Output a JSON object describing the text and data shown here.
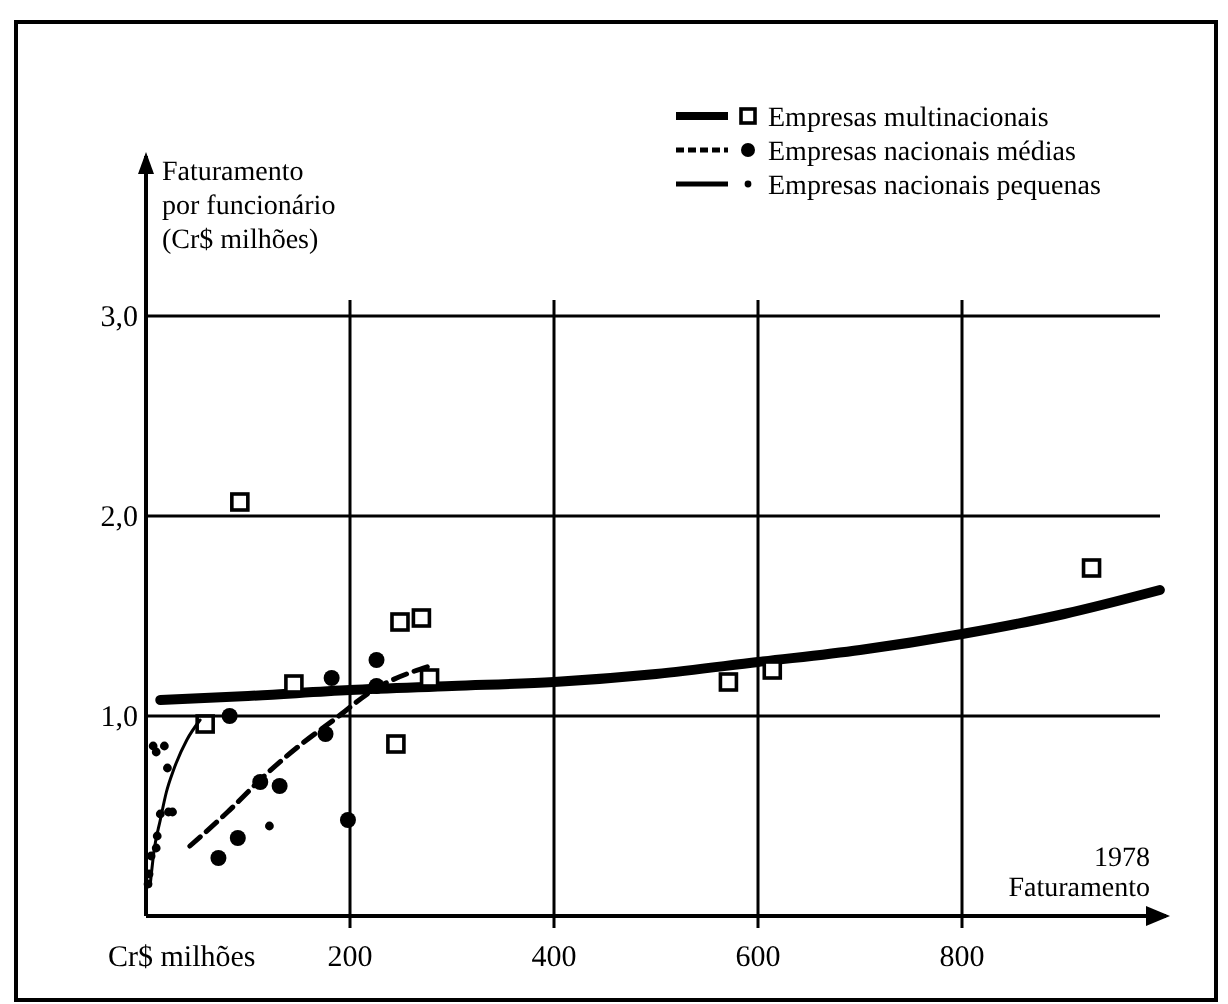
{
  "chart_data": {
    "type": "scatter",
    "xlabel": "Faturamento",
    "ylabel": "Faturamento\npor funcionário\n(Cr$ milhões)",
    "annotations": [
      "1978",
      "Cr$ milhões"
    ],
    "xlim": [
      0,
      1000
    ],
    "ylim": [
      0,
      3.8
    ],
    "xticks": [
      200,
      400,
      600,
      800
    ],
    "yticks": [
      {
        "value": 1,
        "label": "1,0"
      },
      {
        "value": 2,
        "label": "2,0"
      },
      {
        "value": 3,
        "label": "3,0"
      }
    ],
    "grid": true,
    "legend": "top right",
    "series": [
      {
        "type": "line",
        "color": "#000000",
        "line_style": "solid",
        "marker": "none",
        "x": [
          14,
          100,
          200,
          300,
          400,
          500,
          600,
          700,
          800,
          900,
          994
        ],
        "values": [
          1.08,
          1.1,
          1.13,
          1.15,
          1.17,
          1.21,
          1.27,
          1.33,
          1.41,
          1.51,
          1.63
        ]
      },
      {
        "name": "Empresas multinacionais",
        "color": "#000000",
        "marker": "square",
        "x": [
          92,
          58,
          145,
          249,
          270,
          278,
          245,
          571,
          614,
          927
        ],
        "values": [
          2.07,
          0.96,
          1.16,
          1.47,
          1.49,
          1.19,
          0.86,
          1.17,
          1.23,
          1.74
        ]
      },
      {
        "type": "line",
        "color": "#000000",
        "line_style": "dashed",
        "marker": "none",
        "x": [
          43,
          80,
          118,
          150,
          184,
          223,
          278
        ],
        "values": [
          0.35,
          0.52,
          0.71,
          0.85,
          0.98,
          1.13,
          1.25
        ]
      },
      {
        "name": "Empresas nacionais médias",
        "color": "#000000",
        "marker": "circle",
        "x": [
          71,
          90,
          112,
          131,
          82,
          182,
          176,
          226,
          226,
          198
        ],
        "values": [
          0.29,
          0.39,
          0.67,
          0.65,
          1.0,
          1.19,
          0.91,
          1.28,
          1.15,
          0.48
        ]
      },
      {
        "type": "line",
        "color": "#000000",
        "line_style": "solid",
        "marker": "none",
        "x": [
          4,
          8,
          14,
          20,
          27,
          40,
          53
        ],
        "values": [
          0.15,
          0.33,
          0.48,
          0.62,
          0.73,
          0.88,
          0.98
        ]
      },
      {
        "name": "Empresas nacionais pequenas",
        "color": "#000000",
        "marker": "circle",
        "x": [
          2,
          3,
          5,
          10,
          11,
          14,
          22,
          21,
          10,
          7,
          18,
          26,
          121
        ],
        "values": [
          0.16,
          0.21,
          0.3,
          0.34,
          0.4,
          0.51,
          0.52,
          0.74,
          0.82,
          0.85,
          0.85,
          0.52,
          0.45
        ]
      }
    ]
  }
}
